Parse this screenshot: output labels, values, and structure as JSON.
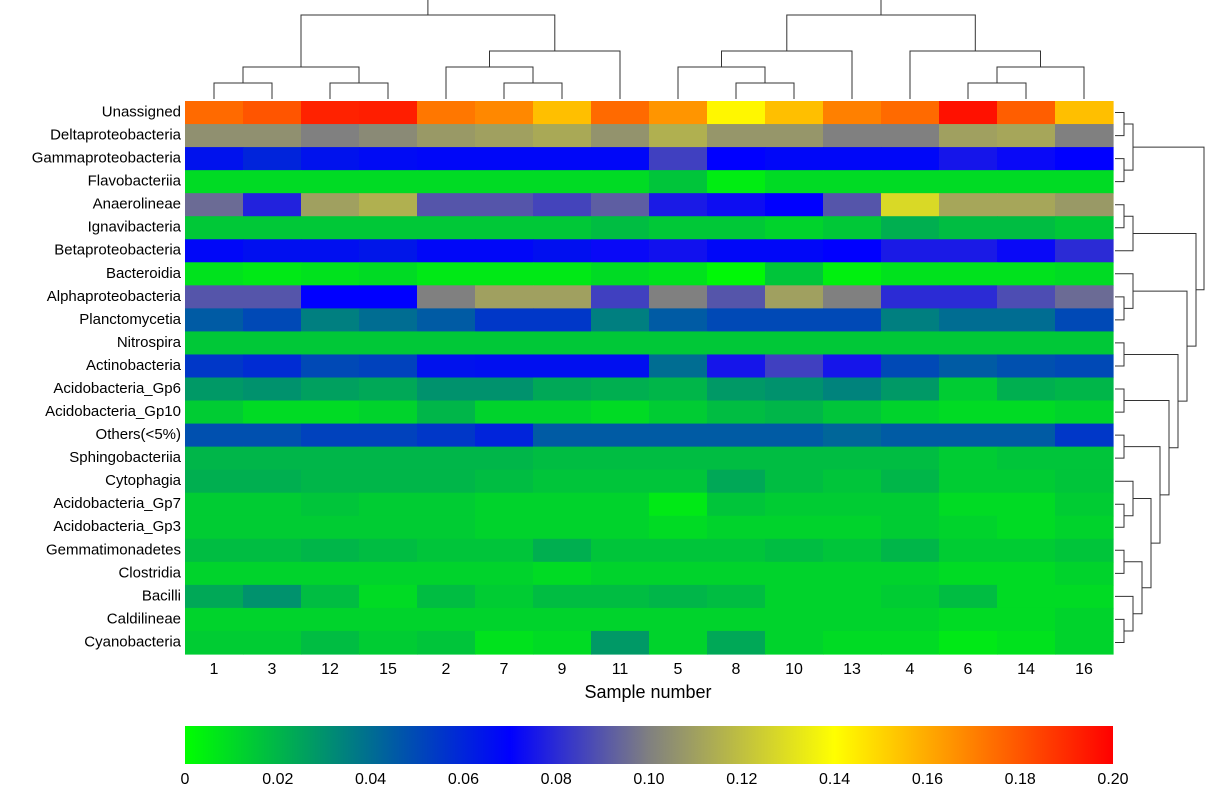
{
  "chart_data": {
    "type": "heatmap",
    "title": "",
    "xlabel": "Sample number",
    "ylabel": "",
    "x": [
      "1",
      "3",
      "12",
      "15",
      "2",
      "7",
      "9",
      "11",
      "5",
      "8",
      "10",
      "13",
      "4",
      "6",
      "14",
      "16"
    ],
    "y": [
      "Unassigned",
      "Deltaproteobacteria",
      "Gammaproteobacteria",
      "Flavobacteriia",
      "Anaerolineae",
      "Ignavibacteria",
      "Betaproteobacteria",
      "Bacteroidia",
      "Alphaproteobacteria",
      "Planctomycetia",
      "Nitrospira",
      "Actinobacteria",
      "Acidobacteria_Gp6",
      "Acidobacteria_Gp10",
      "Others(<5%)",
      "Sphingobacteriia",
      "Cytophagia",
      "Acidobacteria_Gp7",
      "Acidobacteria_Gp3",
      "Gemmatimonadetes",
      "Clostridia",
      "Bacilli",
      "Caldilineae",
      "Cyanobacteria"
    ],
    "values": [
      [
        0.175,
        0.18,
        0.192,
        0.193,
        0.172,
        0.168,
        0.155,
        0.175,
        0.165,
        0.142,
        0.155,
        0.17,
        0.175,
        0.196,
        0.178,
        0.155
      ],
      [
        0.105,
        0.105,
        0.1,
        0.103,
        0.108,
        0.11,
        0.113,
        0.106,
        0.115,
        0.107,
        0.107,
        0.1,
        0.1,
        0.11,
        0.112,
        0.1
      ],
      [
        0.065,
        0.06,
        0.065,
        0.067,
        0.068,
        0.068,
        0.068,
        0.068,
        0.085,
        0.07,
        0.068,
        0.068,
        0.068,
        0.075,
        0.072,
        0.07
      ],
      [
        0.01,
        0.01,
        0.01,
        0.01,
        0.01,
        0.01,
        0.01,
        0.01,
        0.016,
        0.005,
        0.01,
        0.01,
        0.01,
        0.01,
        0.01,
        0.01
      ],
      [
        0.095,
        0.078,
        0.11,
        0.115,
        0.09,
        0.09,
        0.086,
        0.092,
        0.076,
        0.073,
        0.07,
        0.09,
        0.128,
        0.112,
        0.112,
        0.108
      ],
      [
        0.015,
        0.015,
        0.015,
        0.015,
        0.015,
        0.015,
        0.015,
        0.018,
        0.015,
        0.015,
        0.012,
        0.015,
        0.022,
        0.018,
        0.018,
        0.015
      ],
      [
        0.068,
        0.066,
        0.066,
        0.064,
        0.068,
        0.068,
        0.066,
        0.072,
        0.074,
        0.068,
        0.068,
        0.07,
        0.076,
        0.076,
        0.072,
        0.08
      ],
      [
        0.008,
        0.006,
        0.008,
        0.01,
        0.006,
        0.006,
        0.006,
        0.01,
        0.008,
        0.002,
        0.016,
        0.004,
        0.008,
        0.008,
        0.008,
        0.01
      ],
      [
        0.09,
        0.09,
        0.07,
        0.07,
        0.1,
        0.11,
        0.11,
        0.085,
        0.1,
        0.09,
        0.11,
        0.1,
        0.08,
        0.08,
        0.088,
        0.095
      ],
      [
        0.045,
        0.05,
        0.035,
        0.04,
        0.045,
        0.055,
        0.055,
        0.035,
        0.045,
        0.05,
        0.05,
        0.05,
        0.035,
        0.04,
        0.04,
        0.05
      ],
      [
        0.015,
        0.015,
        0.015,
        0.015,
        0.015,
        0.015,
        0.015,
        0.015,
        0.015,
        0.015,
        0.015,
        0.015,
        0.015,
        0.015,
        0.015,
        0.015
      ],
      [
        0.055,
        0.058,
        0.05,
        0.052,
        0.065,
        0.066,
        0.066,
        0.066,
        0.04,
        0.075,
        0.085,
        0.075,
        0.05,
        0.045,
        0.048,
        0.05
      ],
      [
        0.028,
        0.03,
        0.026,
        0.024,
        0.03,
        0.03,
        0.024,
        0.022,
        0.02,
        0.028,
        0.03,
        0.034,
        0.028,
        0.014,
        0.022,
        0.02
      ],
      [
        0.014,
        0.01,
        0.01,
        0.012,
        0.02,
        0.012,
        0.012,
        0.01,
        0.014,
        0.018,
        0.02,
        0.016,
        0.012,
        0.01,
        0.01,
        0.012
      ],
      [
        0.048,
        0.048,
        0.052,
        0.052,
        0.055,
        0.06,
        0.045,
        0.045,
        0.045,
        0.045,
        0.045,
        0.042,
        0.045,
        0.045,
        0.045,
        0.055
      ],
      [
        0.02,
        0.02,
        0.02,
        0.02,
        0.02,
        0.02,
        0.018,
        0.018,
        0.018,
        0.018,
        0.018,
        0.018,
        0.018,
        0.014,
        0.016,
        0.016
      ],
      [
        0.022,
        0.022,
        0.02,
        0.02,
        0.02,
        0.018,
        0.016,
        0.016,
        0.016,
        0.024,
        0.018,
        0.016,
        0.02,
        0.014,
        0.014,
        0.016
      ],
      [
        0.014,
        0.014,
        0.016,
        0.014,
        0.014,
        0.012,
        0.012,
        0.012,
        0.006,
        0.016,
        0.014,
        0.014,
        0.014,
        0.01,
        0.01,
        0.014
      ],
      [
        0.014,
        0.014,
        0.014,
        0.014,
        0.014,
        0.012,
        0.012,
        0.012,
        0.01,
        0.012,
        0.012,
        0.012,
        0.014,
        0.012,
        0.01,
        0.012
      ],
      [
        0.018,
        0.018,
        0.02,
        0.018,
        0.016,
        0.016,
        0.022,
        0.016,
        0.016,
        0.016,
        0.018,
        0.016,
        0.02,
        0.014,
        0.014,
        0.016
      ],
      [
        0.012,
        0.012,
        0.012,
        0.012,
        0.012,
        0.012,
        0.01,
        0.012,
        0.012,
        0.012,
        0.012,
        0.012,
        0.012,
        0.01,
        0.01,
        0.012
      ],
      [
        0.024,
        0.03,
        0.018,
        0.01,
        0.018,
        0.014,
        0.018,
        0.018,
        0.02,
        0.018,
        0.012,
        0.012,
        0.014,
        0.018,
        0.01,
        0.01
      ],
      [
        0.012,
        0.012,
        0.012,
        0.012,
        0.012,
        0.012,
        0.012,
        0.012,
        0.012,
        0.012,
        0.012,
        0.012,
        0.012,
        0.01,
        0.01,
        0.012
      ],
      [
        0.014,
        0.014,
        0.018,
        0.014,
        0.016,
        0.008,
        0.01,
        0.028,
        0.012,
        0.024,
        0.012,
        0.01,
        0.01,
        0.006,
        0.008,
        0.012
      ]
    ],
    "colorbar": {
      "min": 0,
      "max": 0.2,
      "tick_labels": [
        "0",
        "0.02",
        "0.04",
        "0.06",
        "0.08",
        "0.10",
        "0.12",
        "0.14",
        "0.16",
        "0.18",
        "0.20"
      ],
      "colors": [
        "#00ff00",
        "#0000ff",
        "#ffff00",
        "#ff0000"
      ]
    }
  }
}
